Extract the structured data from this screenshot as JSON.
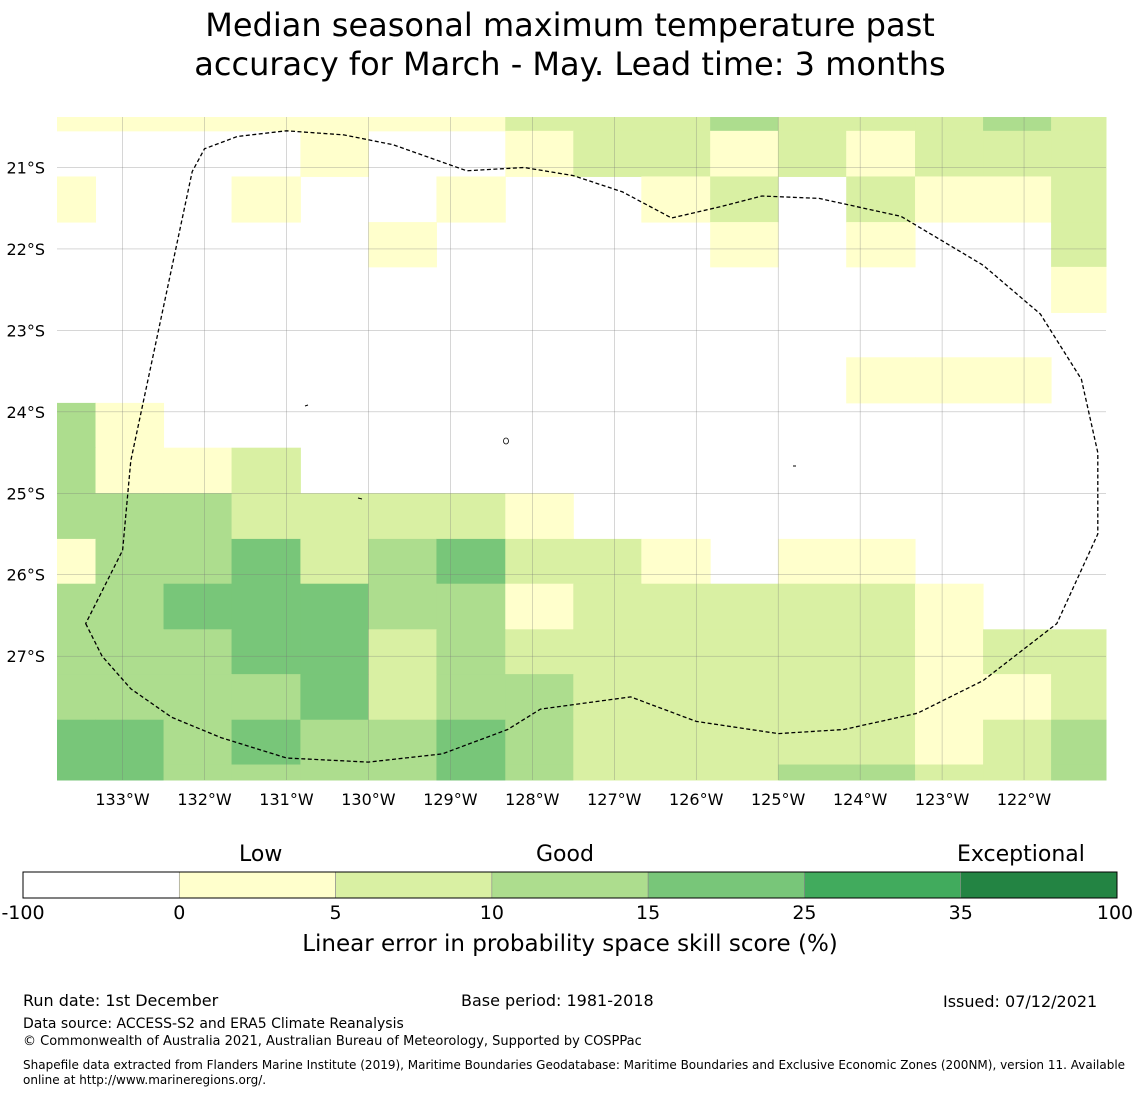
{
  "title": {
    "line1": "Median seasonal maximum temperature past",
    "line2": "accuracy for March - May. Lead time: 3 months"
  },
  "map": {
    "lon_range": [
      -133.8,
      -121.0
    ],
    "lat_range": [
      -28.52,
      -20.38
    ],
    "lon_ticks": [
      -133,
      -132,
      -131,
      -130,
      -129,
      -128,
      -127,
      -126,
      -125,
      -124,
      -123,
      -122
    ],
    "lon_tick_labels": [
      "133°W",
      "132°W",
      "131°W",
      "130°W",
      "129°W",
      "128°W",
      "127°W",
      "126°W",
      "125°W",
      "124°W",
      "123°W",
      "122°W"
    ],
    "lat_ticks": [
      -21,
      -22,
      -23,
      -24,
      -25,
      -26,
      -27
    ],
    "lat_tick_labels": [
      "21°S",
      "22°S",
      "23°S",
      "24°S",
      "25°S",
      "26°S",
      "27°S"
    ],
    "grid": true,
    "cell_columns_lon": [
      -133.8,
      -133.33,
      -132.5,
      -131.67,
      -130.83,
      -130.0,
      -129.17,
      -128.33,
      -127.5,
      -126.67,
      -125.83,
      -125.0,
      -124.17,
      -123.33,
      -122.5,
      -121.67,
      -121.0
    ],
    "cell_rows_lat": [
      -20.38,
      -20.55,
      -21.11,
      -21.67,
      -22.22,
      -22.78,
      -23.33,
      -23.89,
      -24.44,
      -25.0,
      -25.56,
      -26.11,
      -26.67,
      -27.22,
      -27.78,
      -28.33,
      -28.52
    ],
    "cells": [
      [
        1,
        1,
        1,
        1,
        1,
        1,
        1,
        2,
        2,
        2,
        3,
        2,
        2,
        2,
        3,
        2
      ],
      [
        0,
        0,
        0,
        0,
        1,
        0,
        0,
        1,
        2,
        2,
        1,
        2,
        1,
        2,
        2,
        2
      ],
      [
        1,
        0,
        0,
        1,
        0,
        0,
        1,
        0,
        0,
        1,
        2,
        0,
        2,
        1,
        1,
        2
      ],
      [
        0,
        0,
        0,
        0,
        0,
        1,
        0,
        0,
        0,
        0,
        1,
        0,
        1,
        0,
        0,
        2
      ],
      [
        0,
        0,
        0,
        0,
        0,
        0,
        0,
        0,
        0,
        0,
        0,
        0,
        0,
        0,
        0,
        1
      ],
      [
        0,
        0,
        0,
        0,
        0,
        0,
        0,
        0,
        0,
        0,
        0,
        0,
        0,
        0,
        0,
        0
      ],
      [
        0,
        0,
        0,
        0,
        0,
        0,
        0,
        0,
        0,
        0,
        0,
        0,
        1,
        1,
        1,
        0
      ],
      [
        3,
        1,
        0,
        0,
        0,
        0,
        0,
        0,
        0,
        0,
        0,
        0,
        0,
        0,
        0,
        0
      ],
      [
        3,
        1,
        1,
        2,
        0,
        0,
        0,
        0,
        0,
        0,
        0,
        0,
        0,
        0,
        0,
        0
      ],
      [
        3,
        3,
        3,
        2,
        2,
        2,
        2,
        1,
        0,
        0,
        0,
        0,
        0,
        0,
        0,
        0
      ],
      [
        1,
        3,
        3,
        4,
        2,
        3,
        4,
        2,
        2,
        1,
        0,
        1,
        1,
        0,
        0,
        0
      ],
      [
        3,
        3,
        4,
        4,
        4,
        3,
        3,
        1,
        2,
        2,
        2,
        2,
        2,
        1,
        0,
        0
      ],
      [
        3,
        3,
        3,
        4,
        4,
        2,
        3,
        2,
        2,
        2,
        2,
        2,
        2,
        1,
        2,
        2
      ],
      [
        3,
        3,
        3,
        3,
        4,
        2,
        3,
        3,
        2,
        2,
        2,
        2,
        2,
        1,
        1,
        2
      ],
      [
        4,
        4,
        3,
        4,
        3,
        3,
        4,
        3,
        2,
        2,
        2,
        2,
        2,
        1,
        2,
        3
      ],
      [
        4,
        4,
        3,
        3,
        3,
        3,
        4,
        3,
        2,
        2,
        2,
        3,
        3,
        2,
        2,
        3
      ]
    ],
    "eez_boundary": [
      [
        -133.45,
        -26.6
      ],
      [
        -133.25,
        -27.0
      ],
      [
        -132.9,
        -27.4
      ],
      [
        -132.4,
        -27.75
      ],
      [
        -131.8,
        -28.0
      ],
      [
        -131.0,
        -28.25
      ],
      [
        -130.0,
        -28.3
      ],
      [
        -129.1,
        -28.2
      ],
      [
        -128.3,
        -27.9
      ],
      [
        -127.9,
        -27.65
      ],
      [
        -126.8,
        -27.5
      ],
      [
        -126.0,
        -27.8
      ],
      [
        -125.0,
        -27.95
      ],
      [
        -124.2,
        -27.9
      ],
      [
        -123.3,
        -27.7
      ],
      [
        -122.5,
        -27.3
      ],
      [
        -121.6,
        -26.6
      ],
      [
        -121.1,
        -25.5
      ],
      [
        -121.1,
        -24.5
      ],
      [
        -121.3,
        -23.6
      ],
      [
        -121.8,
        -22.8
      ],
      [
        -122.5,
        -22.2
      ],
      [
        -123.5,
        -21.6
      ],
      [
        -124.5,
        -21.38
      ],
      [
        -125.2,
        -21.35
      ],
      [
        -125.7,
        -21.48
      ],
      [
        -126.3,
        -21.62
      ],
      [
        -126.9,
        -21.3
      ],
      [
        -127.5,
        -21.1
      ],
      [
        -128.1,
        -21.0
      ],
      [
        -128.8,
        -21.04
      ],
      [
        -129.7,
        -20.72
      ],
      [
        -130.3,
        -20.6
      ],
      [
        -131.0,
        -20.55
      ],
      [
        -131.6,
        -20.62
      ],
      [
        -132.0,
        -20.77
      ],
      [
        -132.15,
        -21.05
      ],
      [
        -132.9,
        -24.6
      ],
      [
        -133.0,
        -25.7
      ],
      [
        -133.45,
        -26.6
      ]
    ]
  },
  "colorbar": {
    "boundaries": [
      "-100",
      "0",
      "5",
      "10",
      "15",
      "25",
      "35",
      "100"
    ],
    "colors": [
      "#ffffff",
      "#ffffcc",
      "#d9f0a3",
      "#addd8e",
      "#78c679",
      "#41ab5d",
      "#238443"
    ],
    "category_low": "Low",
    "category_good": "Good",
    "category_exceptional": "Exceptional",
    "axis_label": "Linear error in probability space skill score (%)"
  },
  "footer": {
    "run_date": "Run date: 1st December",
    "base_period": "Base period: 1981-2018",
    "issued": "Issued: 07/12/2021",
    "data_source": "Data source: ACCESS-S2 and ERA5 Climate Reanalysis",
    "copyright": "© Commonwealth of Australia 2021, Australian Bureau of Meteorology, Supported by COSPPac",
    "shapefile": "Shapefile data extracted from Flanders Marine Institute (2019), Maritime Boundaries Geodatabase: Maritime Boundaries and Exclusive Economic Zones (200NM), version 11. Available online at http://www.marineregions.org/."
  }
}
